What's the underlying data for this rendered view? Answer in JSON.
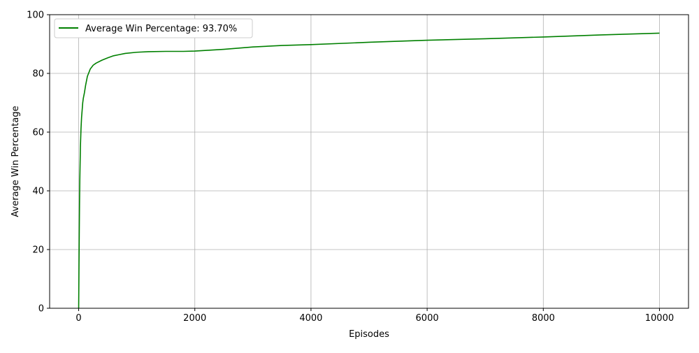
{
  "chart_data": {
    "type": "line",
    "title": "",
    "xlabel": "Episodes",
    "ylabel": "Average Win Percentage",
    "xlim": [
      -500,
      10500
    ],
    "ylim": [
      0,
      100
    ],
    "xticks": [
      0,
      2000,
      4000,
      6000,
      8000,
      10000
    ],
    "yticks": [
      0,
      20,
      40,
      60,
      80,
      100
    ],
    "grid": true,
    "legend": {
      "position": "top-left",
      "entries": [
        "Average Win Percentage: 93.70%"
      ]
    },
    "series": [
      {
        "name": "Average Win Percentage: 93.70%",
        "color": "#008000",
        "x": [
          0,
          5,
          10,
          15,
          20,
          30,
          40,
          50,
          60,
          70,
          80,
          90,
          100,
          120,
          150,
          200,
          250,
          300,
          400,
          500,
          600,
          700,
          800,
          1000,
          1200,
          1500,
          1800,
          2000,
          2500,
          3000,
          3500,
          4000,
          5000,
          6000,
          7000,
          8000,
          9000,
          10000
        ],
        "y": [
          0,
          13,
          25,
          36,
          44,
          55,
          61,
          65,
          67.5,
          70,
          71.5,
          72.5,
          73.5,
          76,
          79,
          81.5,
          82.8,
          83.5,
          84.5,
          85.3,
          86,
          86.4,
          86.8,
          87.2,
          87.4,
          87.5,
          87.5,
          87.6,
          88.2,
          89,
          89.5,
          89.8,
          90.6,
          91.3,
          91.8,
          92.4,
          93.1,
          93.7
        ]
      }
    ]
  }
}
